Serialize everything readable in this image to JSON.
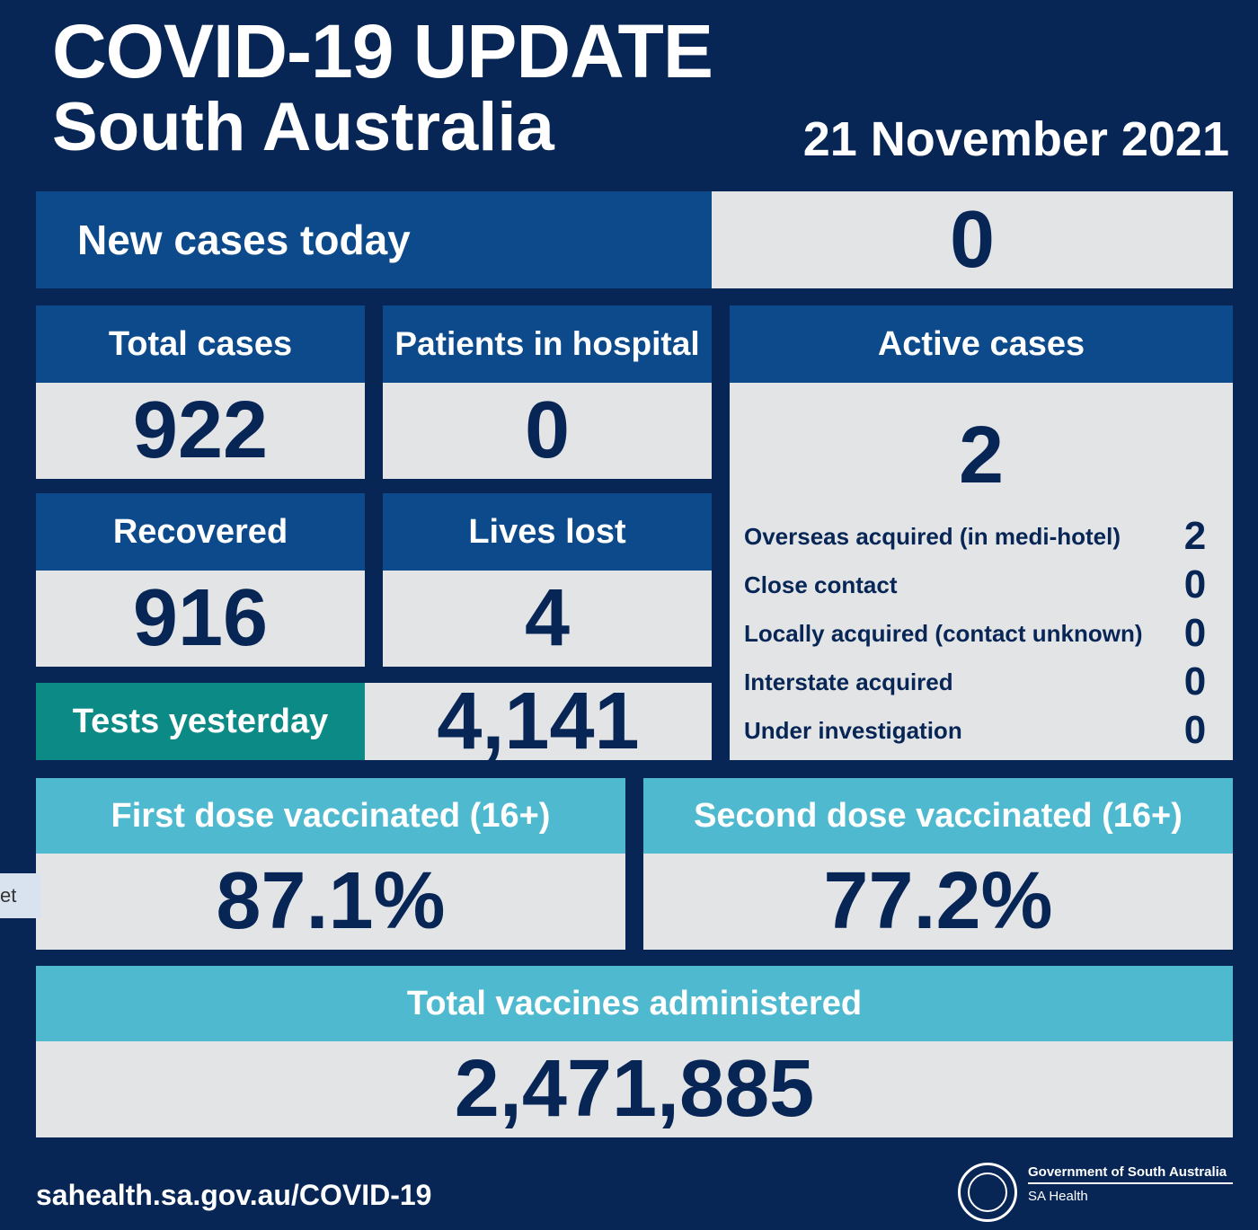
{
  "header": {
    "title": "COVID-19 UPDATE",
    "subtitle": "South Australia",
    "date": "21 November 2021"
  },
  "new_cases": {
    "label": "New cases today",
    "value": "0"
  },
  "total_cases": {
    "label": "Total cases",
    "value": "922"
  },
  "hospital": {
    "label": "Patients in hospital",
    "value": "0"
  },
  "recovered": {
    "label": "Recovered",
    "value": "916"
  },
  "lives_lost": {
    "label": "Lives lost",
    "value": "4"
  },
  "tests": {
    "label": "Tests yesterday",
    "value": "4,141"
  },
  "active": {
    "label": "Active cases",
    "value": "2",
    "breakdown": [
      {
        "label": "Overseas acquired (in medi-hotel)",
        "value": "2"
      },
      {
        "label": "Close contact",
        "value": "0"
      },
      {
        "label": "Locally acquired (contact unknown)",
        "value": "0"
      },
      {
        "label": "Interstate acquired",
        "value": "0"
      },
      {
        "label": "Under investigation",
        "value": "0"
      }
    ]
  },
  "first_dose": {
    "label": "First dose vaccinated (16+)",
    "value": "87.1%"
  },
  "second_dose": {
    "label": "Second dose vaccinated (16+)",
    "value": "77.2%"
  },
  "total_vaccines": {
    "label": "Total vaccines administered",
    "value": "2,471,885"
  },
  "footer": {
    "url": "sahealth.sa.gov.au/COVID-19",
    "gov_name": "Government of South Australia",
    "dept": "SA Health"
  },
  "side_tab": {
    "label": "et"
  },
  "colors": {
    "background": "#072656",
    "header_blue": "#0c4a8b",
    "teal": "#0b8a86",
    "light_blue": "#4fb9cf",
    "value_bg": "#e3e4e6"
  }
}
